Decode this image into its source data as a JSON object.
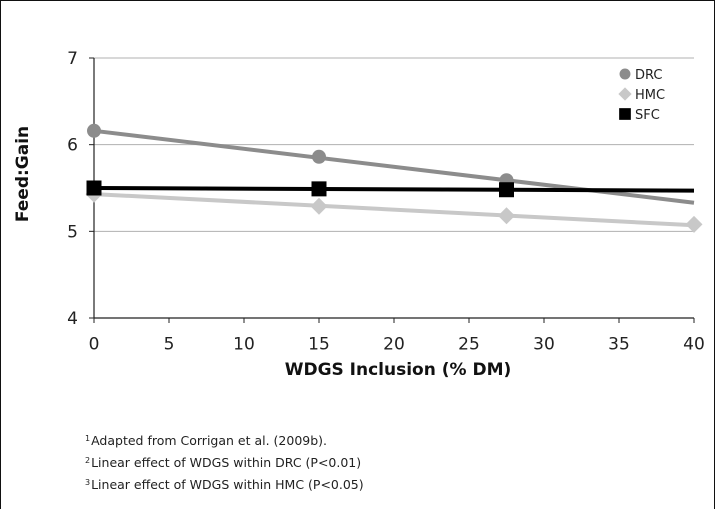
{
  "chart_data": {
    "type": "line",
    "title": "",
    "xlabel": "WDGS Inclusion (% DM)",
    "ylabel": "Feed:Gain",
    "xlim": [
      0,
      40
    ],
    "ylim": [
      4,
      7
    ],
    "x_ticks": [
      0,
      5,
      10,
      15,
      20,
      25,
      30,
      35,
      40
    ],
    "y_ticks": [
      4,
      5,
      6,
      7
    ],
    "grid": "horizontal",
    "legend_position": "top-right",
    "series": [
      {
        "name": "DRC",
        "color": "#8c8c8c",
        "marker": "circle",
        "points": [
          [
            0,
            6.16
          ],
          [
            15,
            5.86
          ],
          [
            27.5,
            5.59
          ]
        ],
        "trend": [
          [
            0,
            6.16
          ],
          [
            40,
            5.33
          ]
        ]
      },
      {
        "name": "HMC",
        "color": "#c8c8c8",
        "marker": "diamond",
        "points": [
          [
            0,
            5.43
          ],
          [
            15,
            5.29
          ],
          [
            27.5,
            5.18
          ],
          [
            40,
            5.08
          ]
        ],
        "trend": [
          [
            0,
            5.43
          ],
          [
            40,
            5.07
          ]
        ]
      },
      {
        "name": "SFC",
        "color": "#000000",
        "marker": "square",
        "points": [
          [
            0,
            5.5
          ],
          [
            15,
            5.49
          ],
          [
            27.5,
            5.48
          ]
        ],
        "trend": [
          [
            0,
            5.5
          ],
          [
            40,
            5.47
          ]
        ]
      }
    ]
  },
  "footnotes": [
    {
      "mark": "1",
      "text": "Adapted from Corrigan et al. (2009b)."
    },
    {
      "mark": "2",
      "text": "Linear effect of WDGS within DRC (P<0.01)"
    },
    {
      "mark": "3",
      "text": "Linear effect of WDGS within HMC (P<0.05)"
    }
  ]
}
